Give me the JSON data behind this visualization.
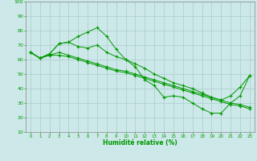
{
  "xlabel": "Humidité relative (%)",
  "background_color": "#cce8e8",
  "grid_color": "#aacccc",
  "line_color": "#009900",
  "xlim": [
    -0.5,
    23.5
  ],
  "ylim": [
    10,
    100
  ],
  "yticks": [
    10,
    20,
    30,
    40,
    50,
    60,
    70,
    80,
    90,
    100
  ],
  "xticks": [
    0,
    1,
    2,
    3,
    4,
    5,
    6,
    7,
    8,
    9,
    10,
    11,
    12,
    13,
    14,
    15,
    16,
    17,
    18,
    19,
    20,
    21,
    22,
    23
  ],
  "series": [
    {
      "x": [
        0,
        1,
        2,
        3,
        4,
        5,
        6,
        7,
        8,
        9,
        10,
        11,
        12,
        13,
        14,
        15,
        16,
        17,
        18,
        19,
        20,
        21,
        22,
        23
      ],
      "y": [
        65,
        61,
        64,
        71,
        72,
        76,
        79,
        82,
        76,
        67,
        60,
        55,
        46,
        42,
        34,
        35,
        34,
        30,
        26,
        23,
        23,
        30,
        35,
        49
      ]
    },
    {
      "x": [
        0,
        1,
        2,
        3,
        4,
        5,
        6,
        7,
        8,
        9,
        10,
        11,
        12,
        13,
        14,
        15,
        16,
        17,
        18,
        19,
        20,
        21,
        22,
        23
      ],
      "y": [
        65,
        61,
        64,
        71,
        72,
        69,
        68,
        70,
        65,
        62,
        60,
        57,
        54,
        50,
        47,
        44,
        42,
        40,
        37,
        34,
        32,
        35,
        41,
        49
      ]
    },
    {
      "x": [
        0,
        1,
        2,
        3,
        4,
        5,
        6,
        7,
        8,
        9,
        10,
        11,
        12,
        13,
        14,
        15,
        16,
        17,
        18,
        19,
        20,
        21,
        22,
        23
      ],
      "y": [
        65,
        61,
        63,
        65,
        63,
        61,
        59,
        57,
        55,
        53,
        52,
        50,
        48,
        46,
        44,
        42,
        40,
        38,
        36,
        34,
        32,
        30,
        29,
        27
      ]
    },
    {
      "x": [
        0,
        1,
        2,
        3,
        4,
        5,
        6,
        7,
        8,
        9,
        10,
        11,
        12,
        13,
        14,
        15,
        16,
        17,
        18,
        19,
        20,
        21,
        22,
        23
      ],
      "y": [
        65,
        61,
        63,
        63,
        62,
        60,
        58,
        56,
        54,
        52,
        51,
        49,
        47,
        45,
        43,
        41,
        39,
        37,
        35,
        33,
        31,
        29,
        28,
        26
      ]
    }
  ]
}
